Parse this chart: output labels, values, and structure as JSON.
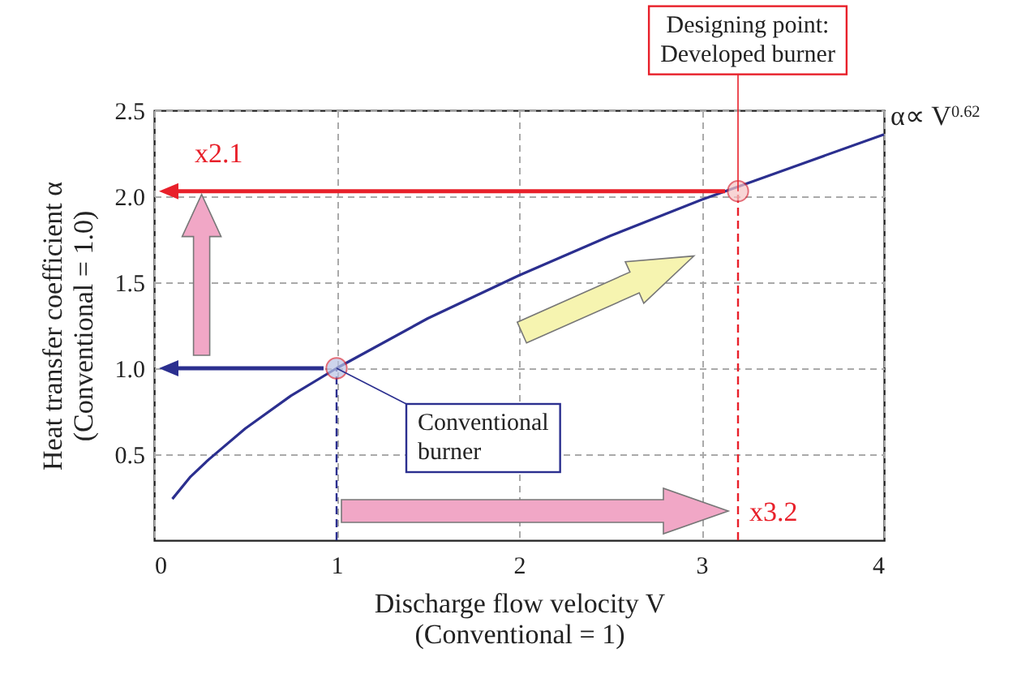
{
  "chart_data": {
    "type": "line",
    "xlabel": "Discharge flow velocity V\n(Conventional = 1)",
    "ylabel": "Heat transfer coefficient α\n(Conventional = 1.0)",
    "xlim": [
      0,
      4
    ],
    "xticks": [
      0,
      1,
      2,
      3,
      4
    ],
    "ylim": [
      0,
      2.5
    ],
    "yticks": [
      {
        "value": 0.5,
        "label": "0.5"
      },
      {
        "value": 1,
        "label": "1.0"
      },
      {
        "value": 1.5,
        "label": "1.5"
      },
      {
        "value": 2,
        "label": "2.0"
      },
      {
        "value": 2.5,
        "label": "2.5"
      }
    ],
    "grid": true,
    "series": [
      {
        "color": "#2b2f8f",
        "x": [
          0.1,
          0.2,
          0.3,
          0.5,
          0.75,
          1,
          1.5,
          2,
          2.5,
          3,
          3.5,
          4
        ],
        "values": [
          0.24,
          0.37,
          0.47,
          0.65,
          0.84,
          1,
          1.29,
          1.54,
          1.77,
          1.98,
          2.17,
          2.36
        ]
      },
      {
        "type": "scatter",
        "marker": "circle",
        "x": [
          1,
          3.2
        ],
        "values": [
          1,
          2.03
        ],
        "colors": [
          "#b9c3e4",
          "#f6c4c4"
        ],
        "color": "#d83040"
      }
    ],
    "ref_lines": [
      {
        "axis": "x",
        "value": 1,
        "color": "#2b2f8f",
        "line_style": "dashed"
      },
      {
        "axis": "x",
        "value": 3.2,
        "color": "#e8202a",
        "line_style": "dashed"
      }
    ],
    "annotations": [
      {
        "text": "Designing point:\nDeveloped burner",
        "x": 3.2,
        "y": 2.03
      },
      {
        "text": "Conventional\nburner",
        "x": 1,
        "y": 1
      },
      "x2.1",
      "x3.2",
      {
        "text": "α∝ V$^{0.62}$",
        "x": 4,
        "y": 2.36
      }
    ]
  }
}
